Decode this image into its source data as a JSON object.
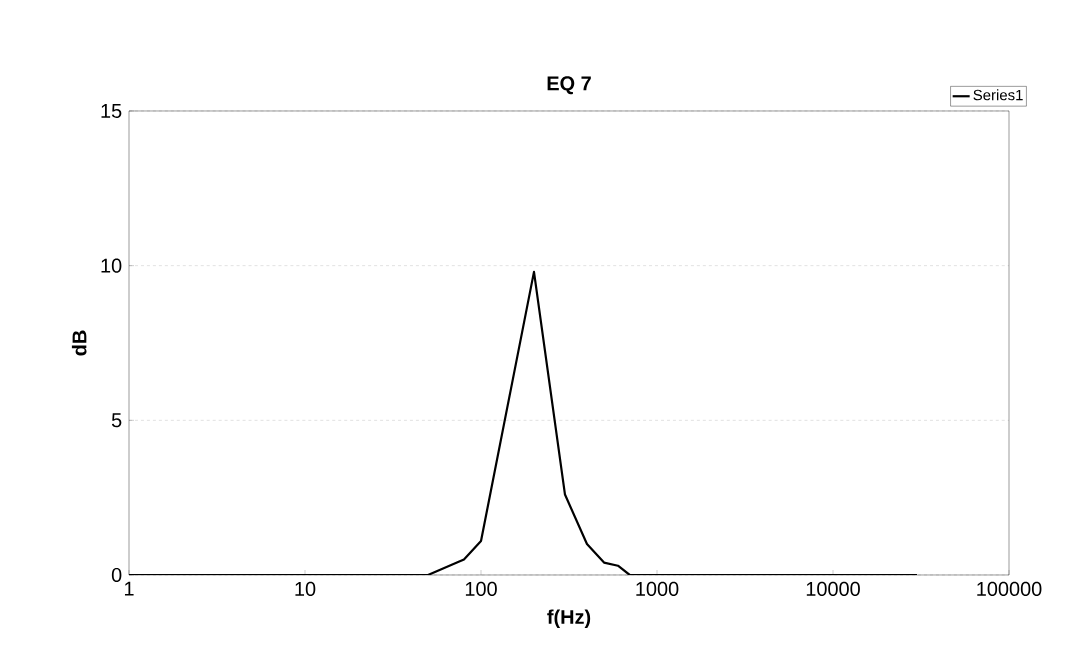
{
  "chart_data": {
    "type": "line",
    "title": "EQ 7",
    "xlabel": "f(Hz)",
    "ylabel": "dB",
    "log": "x",
    "xlim": [
      1,
      100000
    ],
    "xticks": [
      1,
      10,
      100,
      1000,
      10000,
      100000
    ],
    "ylim": [
      0,
      15
    ],
    "yticks": [
      0,
      5,
      10,
      15
    ],
    "grid": "y",
    "legend": "top right",
    "series": [
      {
        "name": "Series1",
        "color": "#000000",
        "x": [
          1,
          10,
          50,
          73,
          80,
          100,
          200,
          300,
          400,
          500,
          600,
          700,
          1000,
          10000,
          30000
        ],
        "values": [
          0,
          0,
          0,
          0.4,
          0.5,
          1.1,
          9.8,
          2.6,
          1.0,
          0.4,
          0.3,
          0,
          0,
          0,
          0
        ]
      }
    ]
  }
}
